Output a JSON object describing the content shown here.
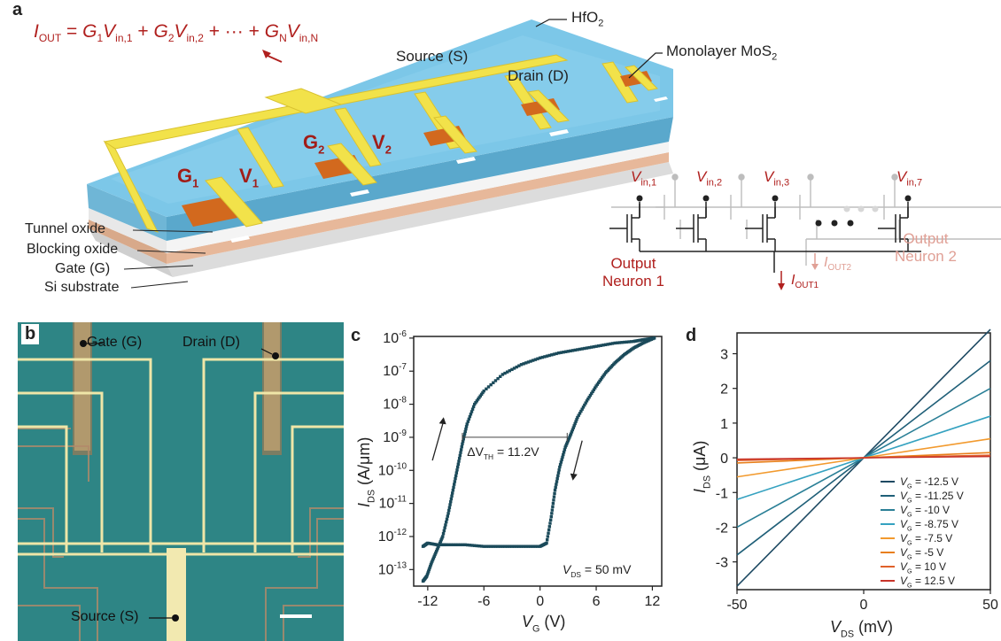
{
  "panels": {
    "a": "a",
    "b": "b",
    "c": "c",
    "d": "d"
  },
  "panel_a": {
    "equation": {
      "I": "I",
      "OUT": "OUT",
      "eq": " = ",
      "G": "G",
      "V": "V",
      "s1": "1",
      "in1": "in,1",
      "s2": "2",
      "in2": "in,2",
      "sN": "N",
      "inN": "in,N",
      "plus": " + ",
      "dots": " + ··· + "
    },
    "hfo2": "HfO",
    "hfo2_sub": "2",
    "source": "Source (S)",
    "drain": "Drain (D)",
    "mos2": "Monolayer MoS",
    "mos2_sub": "2",
    "g1": "G",
    "g1_sub": "1",
    "v1": "V",
    "v1_sub": "1",
    "g2": "G",
    "g2_sub": "2",
    "v2": "V",
    "v2_sub": "2",
    "layers": [
      "Tunnel oxide",
      "Blocking oxide",
      "Gate (G)",
      "Si substrate"
    ],
    "circuit": {
      "vin": [
        {
          "V": "V",
          "sub": "in,1"
        },
        {
          "V": "V",
          "sub": "in,2"
        },
        {
          "V": "V",
          "sub": "in,3"
        },
        {
          "V": "V",
          "sub": "in,7"
        }
      ],
      "neuron1": [
        "Output",
        "Neuron 1"
      ],
      "neuron2": [
        "Output",
        "Neuron 2"
      ],
      "iout1": {
        "I": "I",
        "sub": "OUT1"
      },
      "iout2": {
        "I": "I",
        "sub": "OUT2"
      }
    }
  },
  "panel_b": {
    "gate": "Gate (G)",
    "drain": "Drain (D)",
    "source": "Source (S)"
  },
  "colors": {
    "red": "#b0201e",
    "pink": "#e0a096",
    "teal_dark": "#1b4a5a",
    "gold": "#f0e070",
    "hfo2": "#79c4e6"
  },
  "chart_data": [
    {
      "type": "scatter",
      "panel": "c",
      "xlabel": "V",
      "xlabel_sub": "G",
      "xunit": "(V)",
      "ylabel": "I",
      "ylabel_sub": "DS",
      "yunit": "(A/μm)",
      "x_ticks": [
        "-12",
        "-6",
        "0",
        "6",
        "12"
      ],
      "y_ticks": [
        {
          "base": "10",
          "exp": "-6"
        },
        {
          "base": "10",
          "exp": "-7"
        },
        {
          "base": "10",
          "exp": "-8"
        },
        {
          "base": "10",
          "exp": "-9"
        },
        {
          "base": "10",
          "exp": "-10"
        },
        {
          "base": "10",
          "exp": "-11"
        },
        {
          "base": "10",
          "exp": "-12"
        },
        {
          "base": "10",
          "exp": "-13"
        }
      ],
      "xlim": [
        -13.5,
        13
      ],
      "ylim_log10": [
        -13.5,
        -5.95
      ],
      "y_scale": "log",
      "annotation": {
        "delta": "ΔV",
        "sub": "TH",
        "value": " = 11.2V"
      },
      "vds_label": {
        "V": "V",
        "sub": "DS",
        "value": " = 50 mV"
      },
      "series": [
        {
          "branch": "forward",
          "points": [
            [
              -12.5,
              -12.3
            ],
            [
              -12,
              -12.2
            ],
            [
              -11,
              -12.25
            ],
            [
              -10,
              -12.25
            ],
            [
              -8,
              -12.25
            ],
            [
              -6,
              -12.3
            ],
            [
              -4,
              -12.3
            ],
            [
              -2,
              -12.3
            ],
            [
              0,
              -12.3
            ],
            [
              0.7,
              -12.2
            ],
            [
              1.2,
              -11.4
            ],
            [
              1.6,
              -10.6
            ],
            [
              2.1,
              -9.9
            ],
            [
              2.7,
              -9.3
            ],
            [
              3.3,
              -8.9
            ],
            [
              4,
              -8.4
            ],
            [
              5,
              -7.9
            ],
            [
              6,
              -7.45
            ],
            [
              7,
              -7.05
            ],
            [
              8,
              -6.75
            ],
            [
              9,
              -6.5
            ],
            [
              10,
              -6.3
            ],
            [
              11,
              -6.15
            ],
            [
              12.2,
              -6.0
            ]
          ]
        },
        {
          "branch": "reverse",
          "points": [
            [
              12.2,
              -6.0
            ],
            [
              11,
              -6.05
            ],
            [
              10,
              -6.1
            ],
            [
              8,
              -6.15
            ],
            [
              6,
              -6.25
            ],
            [
              4,
              -6.35
            ],
            [
              2,
              -6.45
            ],
            [
              0,
              -6.6
            ],
            [
              -2,
              -6.8
            ],
            [
              -4,
              -7.1
            ],
            [
              -6,
              -7.6
            ],
            [
              -7,
              -8.0
            ],
            [
              -7.8,
              -8.6
            ],
            [
              -8.3,
              -9.2
            ],
            [
              -8.8,
              -9.9
            ],
            [
              -9.3,
              -10.6
            ],
            [
              -9.8,
              -11.3
            ],
            [
              -10.4,
              -12.0
            ],
            [
              -11,
              -12.4
            ],
            [
              -11.6,
              -12.8
            ],
            [
              -12.1,
              -13.2
            ],
            [
              -12.5,
              -13.35
            ]
          ]
        }
      ]
    },
    {
      "type": "line",
      "panel": "d",
      "xlabel": "V",
      "xlabel_sub": "DS",
      "xunit": "(mV)",
      "ylabel": "I",
      "ylabel_sub": "DS",
      "yunit": "(μA)",
      "x_ticks": [
        "-50",
        "0",
        "50"
      ],
      "y_ticks": [
        "3",
        "2",
        "1",
        "0",
        "-1",
        "-2",
        "-3"
      ],
      "xlim": [
        -50,
        50
      ],
      "ylim": [
        -3.8,
        3.6
      ],
      "legend_position": "bottom-right",
      "series": [
        {
          "name_V": "V",
          "name_sub": "G",
          "name_value": " = -12.5 V",
          "color": "#1e4a63",
          "slope": 0.074
        },
        {
          "name_V": "V",
          "name_sub": "G",
          "name_value": " = -11.25 V",
          "color": "#1f5f78",
          "slope": 0.056
        },
        {
          "name_V": "V",
          "name_sub": "G",
          "name_value": " = -10 V",
          "color": "#2a7f96",
          "slope": 0.04
        },
        {
          "name_V": "V",
          "name_sub": "G",
          "name_value": " = -8.75 V",
          "color": "#35a2c0",
          "slope": 0.024
        },
        {
          "name_V": "V",
          "name_sub": "G",
          "name_value": " = -7.5 V",
          "color": "#f29a2e",
          "slope": 0.011
        },
        {
          "name_V": "V",
          "name_sub": "G",
          "name_value": " = -5 V",
          "color": "#e87f1a",
          "slope": 0.003
        },
        {
          "name_V": "V",
          "name_sub": "G",
          "name_value": " = 10 V",
          "color": "#e0602a",
          "slope": 0.0015
        },
        {
          "name_V": "V",
          "name_sub": "G",
          "name_value": " = 12.5 V",
          "color": "#c8342a",
          "slope": 0.0008
        }
      ]
    }
  ]
}
